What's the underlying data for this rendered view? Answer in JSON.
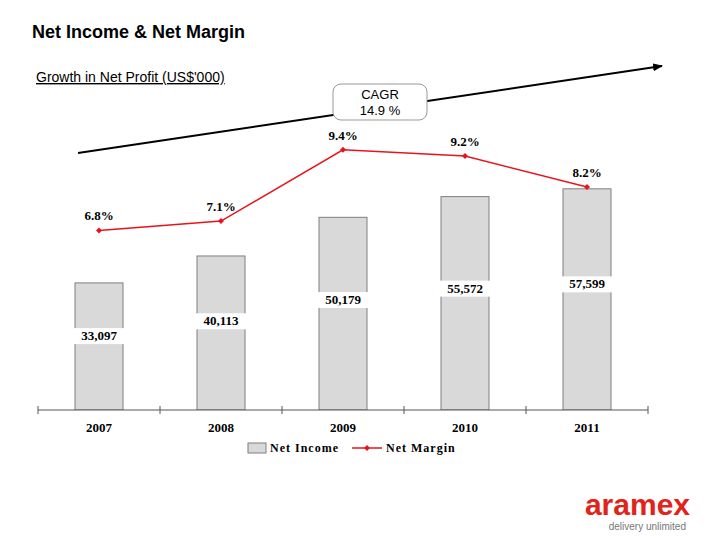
{
  "chart_data": {
    "type": "bar",
    "title": "Net Income & Net Margin",
    "subtitle": "Growth in Net Profit (US$'000)",
    "annotations": [
      "CAGR",
      "14.9 %"
    ],
    "logo": "aramex",
    "logo_tagline": "delivery unlimited",
    "categories": [
      "2007",
      "2008",
      "2009",
      "2010",
      "2011"
    ],
    "series": [
      {
        "name": "Net Income",
        "type": "bar",
        "color": "#d9d9d9",
        "values": [
          33097,
          40113,
          50179,
          55572,
          57599
        ],
        "value_labels": [
          "33,097",
          "40,113",
          "50,179",
          "55,572",
          "57,599"
        ]
      },
      {
        "name": "Net Margin",
        "type": "line",
        "axis": "y2",
        "color": "#e8141b",
        "marker": "diamond",
        "values": [
          6.8,
          7.1,
          9.4,
          9.2,
          8.2
        ],
        "value_labels": [
          "6.8%",
          "7.1%",
          "9.4%",
          "9.2%",
          "8.2%"
        ]
      }
    ],
    "ylim": [
      0,
      75000
    ],
    "y2lim": [
      1,
      10.3
    ],
    "tick_labels": "x",
    "data_labels": true,
    "legend": "bottom"
  }
}
